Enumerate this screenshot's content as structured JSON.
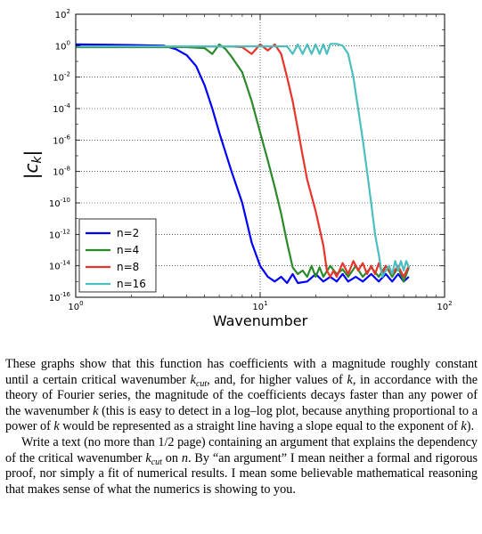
{
  "chart_data": {
    "type": "line",
    "xlabel": "Wavenumber",
    "ylabel": "|c_k|",
    "x_scale": "log",
    "y_scale": "log",
    "xlim": [
      1,
      100
    ],
    "ylim": [
      1e-16,
      100
    ],
    "x_ticks": [
      {
        "base": "10",
        "exp": "0"
      },
      {
        "base": "10",
        "exp": "1"
      },
      {
        "base": "10",
        "exp": "2"
      }
    ],
    "y_ticks": [
      {
        "base": "10",
        "exp": "2"
      },
      {
        "base": "10",
        "exp": "0"
      },
      {
        "base": "10",
        "exp": "-2"
      },
      {
        "base": "10",
        "exp": "-4"
      },
      {
        "base": "10",
        "exp": "-6"
      },
      {
        "base": "10",
        "exp": "-8"
      },
      {
        "base": "10",
        "exp": "-10"
      },
      {
        "base": "10",
        "exp": "-12"
      },
      {
        "base": "10",
        "exp": "-14"
      },
      {
        "base": "10",
        "exp": "-16"
      }
    ],
    "grid": true,
    "legend_position": "bottom-left",
    "series": [
      {
        "name": "n=2",
        "color": "#0000ff",
        "points": [
          [
            1,
            1.2
          ],
          [
            2,
            1.1
          ],
          [
            3,
            1.0
          ],
          [
            3.5,
            0.6
          ],
          [
            4,
            0.25
          ],
          [
            4.5,
            0.05
          ],
          [
            5,
            0.003
          ],
          [
            5.5,
            0.0001
          ],
          [
            6,
            3e-06
          ],
          [
            7,
            1e-08
          ],
          [
            8,
            1e-10
          ],
          [
            9,
            3e-13
          ],
          [
            10,
            1e-14
          ],
          [
            11,
            2e-15
          ],
          [
            12,
            1e-15
          ],
          [
            13,
            2e-15
          ],
          [
            14,
            8e-16
          ],
          [
            15,
            3e-15
          ],
          [
            16,
            8e-16
          ],
          [
            18,
            1e-15
          ],
          [
            20,
            3e-15
          ],
          [
            22,
            1e-15
          ],
          [
            24,
            2e-15
          ],
          [
            26,
            1e-15
          ],
          [
            28,
            3e-15
          ],
          [
            30,
            1e-15
          ],
          [
            33,
            2e-15
          ],
          [
            36,
            1e-15
          ],
          [
            40,
            3e-15
          ],
          [
            44,
            1e-15
          ],
          [
            48,
            3e-15
          ],
          [
            52,
            1e-15
          ],
          [
            56,
            3e-15
          ],
          [
            60,
            1e-15
          ],
          [
            64,
            2e-15
          ]
        ]
      },
      {
        "name": "n=4",
        "color": "#2a8a2a",
        "points": [
          [
            1,
            0.8
          ],
          [
            3,
            0.8
          ],
          [
            4,
            0.8
          ],
          [
            5,
            0.7
          ],
          [
            5.5,
            0.3
          ],
          [
            6,
            1.2
          ],
          [
            6.5,
            0.6
          ],
          [
            7,
            0.2
          ],
          [
            8,
            0.02
          ],
          [
            9,
            0.0003
          ],
          [
            10,
            3e-06
          ],
          [
            11,
            5e-08
          ],
          [
            12,
            1e-09
          ],
          [
            13,
            2e-11
          ],
          [
            14,
            3e-13
          ],
          [
            15,
            8e-15
          ],
          [
            16,
            3e-15
          ],
          [
            17,
            5e-15
          ],
          [
            18,
            2e-15
          ],
          [
            19,
            1e-14
          ],
          [
            20,
            2e-15
          ],
          [
            21,
            8e-15
          ],
          [
            22,
            2e-15
          ],
          [
            24,
            1e-14
          ],
          [
            26,
            3e-15
          ],
          [
            28,
            6e-15
          ],
          [
            30,
            2e-15
          ],
          [
            33,
            1e-14
          ],
          [
            36,
            2e-15
          ],
          [
            40,
            8e-15
          ],
          [
            44,
            2e-15
          ],
          [
            48,
            1e-14
          ],
          [
            52,
            2e-15
          ],
          [
            56,
            8e-15
          ],
          [
            60,
            1e-15
          ],
          [
            64,
            8e-15
          ]
        ]
      },
      {
        "name": "n=8",
        "color": "#e8342a",
        "points": [
          [
            1,
            0.9
          ],
          [
            4,
            0.9
          ],
          [
            6,
            0.9
          ],
          [
            7,
            0.9
          ],
          [
            8,
            0.8
          ],
          [
            9,
            0.3
          ],
          [
            10,
            1.2
          ],
          [
            11,
            0.5
          ],
          [
            12,
            1.2
          ],
          [
            13,
            0.3
          ],
          [
            14,
            0.01
          ],
          [
            15,
            0.0003
          ],
          [
            16,
            5e-06
          ],
          [
            17,
            1e-07
          ],
          [
            18,
            3e-09
          ],
          [
            20,
            3e-11
          ],
          [
            22,
            2e-13
          ],
          [
            23,
            5e-15
          ],
          [
            24,
            2e-15
          ],
          [
            25,
            5e-15
          ],
          [
            26,
            2e-15
          ],
          [
            28,
            1.5e-14
          ],
          [
            30,
            3e-15
          ],
          [
            32,
            2e-14
          ],
          [
            34,
            5e-15
          ],
          [
            36,
            1.5e-14
          ],
          [
            38,
            3e-15
          ],
          [
            40,
            1e-14
          ],
          [
            42,
            3e-15
          ],
          [
            44,
            1.5e-14
          ],
          [
            46,
            3e-15
          ],
          [
            48,
            1e-14
          ],
          [
            52,
            3e-15
          ],
          [
            56,
            1e-14
          ],
          [
            60,
            2e-15
          ],
          [
            64,
            1e-14
          ]
        ]
      },
      {
        "name": "n=16",
        "color": "#4bbfbf",
        "points": [
          [
            1,
            0.9
          ],
          [
            6,
            0.9
          ],
          [
            10,
            0.9
          ],
          [
            12,
            0.9
          ],
          [
            14,
            0.9
          ],
          [
            15,
            0.3
          ],
          [
            16,
            1.2
          ],
          [
            17,
            0.3
          ],
          [
            18,
            1.2
          ],
          [
            19,
            0.3
          ],
          [
            20,
            1.2
          ],
          [
            21,
            0.3
          ],
          [
            22,
            1.2
          ],
          [
            23,
            0.3
          ],
          [
            24,
            1.3
          ],
          [
            26,
            1.3
          ],
          [
            28,
            1.0
          ],
          [
            30,
            0.3
          ],
          [
            32,
            0.01
          ],
          [
            34,
            0.0001
          ],
          [
            36,
            1e-06
          ],
          [
            38,
            1e-08
          ],
          [
            40,
            1e-10
          ],
          [
            42,
            1e-12
          ],
          [
            44,
            5e-14
          ],
          [
            46,
            2e-15
          ],
          [
            48,
            5e-15
          ],
          [
            50,
            1e-14
          ],
          [
            52,
            3e-15
          ],
          [
            54,
            2e-14
          ],
          [
            56,
            5e-15
          ],
          [
            58,
            2e-14
          ],
          [
            60,
            5e-15
          ],
          [
            62,
            2e-14
          ],
          [
            64,
            8e-15
          ]
        ]
      }
    ]
  },
  "caption": {
    "p1_a": "These graphs show that this function has coefficients with a magnitude roughly constant until a certain critical wavenumber ",
    "kcut_k": "k",
    "kcut_sub": "cut",
    "p1_b": ", and, for higher values of ",
    "k1": "k",
    "p1_c": ", in accordance with the theory of Fourier series, the magnitude of the coefficients decays faster than any power of the wavenumber ",
    "k2": "k",
    "p1_d": " (this is easy to detect in a log–log plot, because anything proportional to a power of ",
    "k3": "k",
    "p1_e": " would be represented as a straight line having a slope equal to the exponent of ",
    "k4": "k",
    "p1_f": ").",
    "p2_a": "Write a text (no more than 1/2 page) containing an argument that explains the dependency of the critical wavenumber ",
    "kcut2_k": "k",
    "kcut2_sub": "cut",
    "p2_b": " on ",
    "n": "n",
    "p2_c": ". By “an argument” I mean neither a formal and rigorous proof, nor simply a fit of numerical results. I mean some believable mathematical reasoning that makes sense of what the numerics is showing to you."
  }
}
